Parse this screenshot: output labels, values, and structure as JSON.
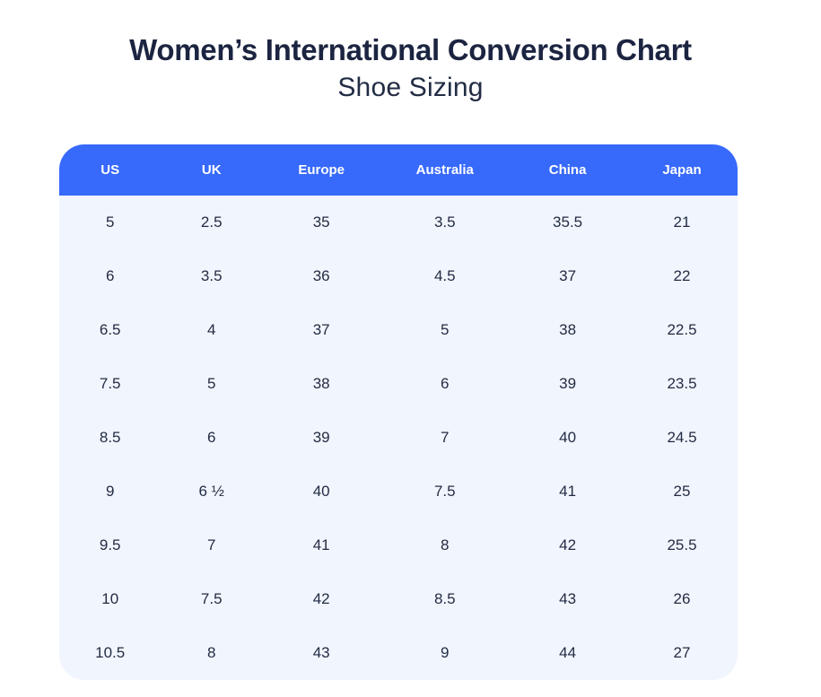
{
  "page": {
    "title": "Women’s International Conversion Chart",
    "subtitle": "Shoe Sizing"
  },
  "table": {
    "headers": [
      "US",
      "UK",
      "Europe",
      "Australia",
      "China",
      "Japan"
    ],
    "rows": [
      [
        "5",
        "2.5",
        "35",
        "3.5",
        "35.5",
        "21"
      ],
      [
        "6",
        "3.5",
        "36",
        "4.5",
        "37",
        "22"
      ],
      [
        "6.5",
        "4",
        "37",
        "5",
        "38",
        "22.5"
      ],
      [
        "7.5",
        "5",
        "38",
        "6",
        "39",
        "23.5"
      ],
      [
        "8.5",
        "6",
        "39",
        "7",
        "40",
        "24.5"
      ],
      [
        "9",
        "6 ½",
        "40",
        "7.5",
        "41",
        "25"
      ],
      [
        "9.5",
        "7",
        "41",
        "8",
        "42",
        "25.5"
      ],
      [
        "10",
        "7.5",
        "42",
        "8.5",
        "43",
        "26"
      ],
      [
        "10.5",
        "8",
        "43",
        "9",
        "44",
        "27"
      ]
    ]
  },
  "colors": {
    "header_bg": "#3769fb",
    "header_text": "#ffffff",
    "body_bg": "#f1f5fd",
    "title_text": "#1b2440",
    "cell_text": "#222c44",
    "page_bg": "#ffffff"
  },
  "chart_data": {
    "type": "table",
    "title": "Women’s International Conversion Chart",
    "subtitle": "Shoe Sizing",
    "columns": [
      "US",
      "UK",
      "Europe",
      "Australia",
      "China",
      "Japan"
    ],
    "rows": [
      [
        "5",
        "2.5",
        "35",
        "3.5",
        "35.5",
        "21"
      ],
      [
        "6",
        "3.5",
        "36",
        "4.5",
        "37",
        "22"
      ],
      [
        "6.5",
        "4",
        "37",
        "5",
        "38",
        "22.5"
      ],
      [
        "7.5",
        "5",
        "38",
        "6",
        "39",
        "23.5"
      ],
      [
        "8.5",
        "6",
        "39",
        "7",
        "40",
        "24.5"
      ],
      [
        "9",
        "6 ½",
        "40",
        "7.5",
        "41",
        "25"
      ],
      [
        "9.5",
        "7",
        "41",
        "8",
        "42",
        "25.5"
      ],
      [
        "10",
        "7.5",
        "42",
        "8.5",
        "43",
        "26"
      ],
      [
        "10.5",
        "8",
        "43",
        "9",
        "44",
        "27"
      ]
    ]
  }
}
